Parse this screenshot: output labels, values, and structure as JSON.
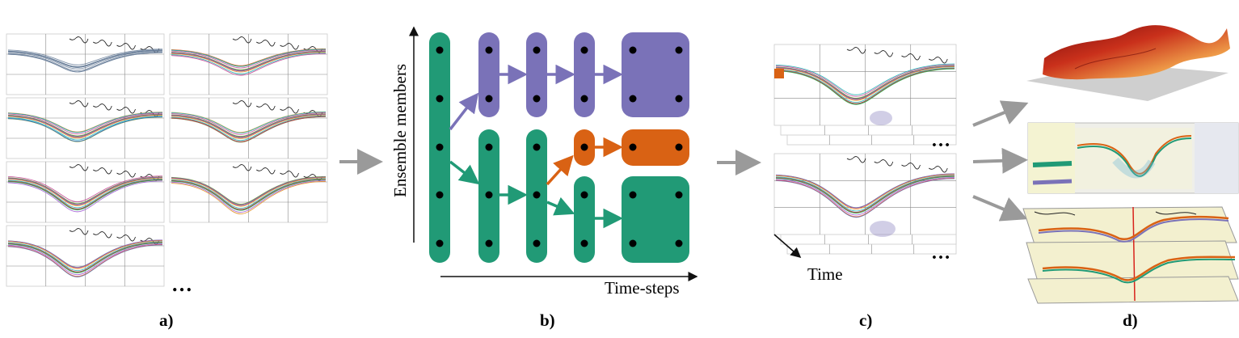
{
  "panels": [
    {
      "label": "a)"
    },
    {
      "label": "b)"
    },
    {
      "label": "c)"
    },
    {
      "label": "d)"
    }
  ],
  "panel_a": {
    "ellipsis": "…"
  },
  "panel_b": {
    "y_axis_label": "Ensemble members",
    "x_axis_label": "Time-steps"
  },
  "panel_c": {
    "ellipsis_top": "…",
    "ellipsis_bottom": "…",
    "time_label": "Time"
  },
  "colors": {
    "green": "#219a76",
    "purple": "#7a72b8",
    "orange": "#d96214",
    "arrow_gray": "#9a9a9a",
    "map_line": "#333333"
  }
}
